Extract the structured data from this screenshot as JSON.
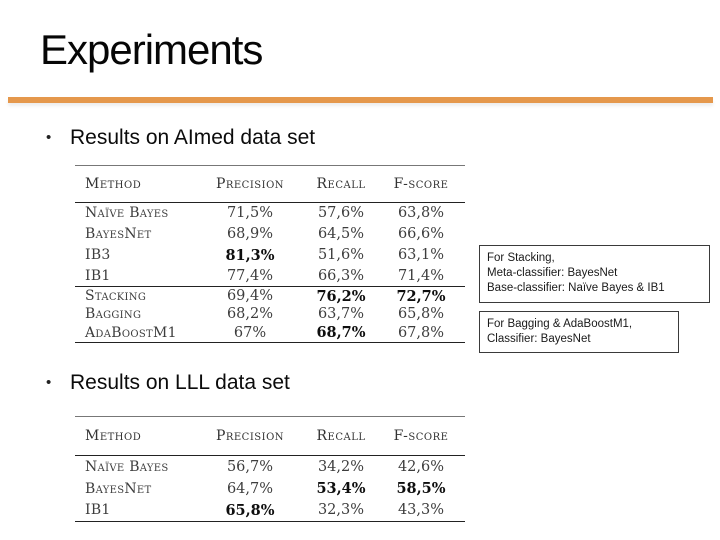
{
  "slide": {
    "title": "Experiments",
    "accent_color": "#E5984C",
    "bullets": {
      "aimed": "Results on AImed data set",
      "lll": "Results on LLL data set"
    }
  },
  "tables": {
    "aimed": {
      "headers": [
        "Method",
        "Precision",
        "Recall",
        "F-score"
      ],
      "groups": [
        [
          {
            "cells": [
              "Naïve Bayes",
              "71,5%",
              "57,6%",
              "63,8%"
            ],
            "bold": []
          },
          {
            "cells": [
              "BayesNet",
              "68,9%",
              "64,5%",
              "66,6%"
            ],
            "bold": []
          },
          {
            "cells": [
              "IB3",
              "81,3%",
              "51,6%",
              "63,1%"
            ],
            "bold": [
              1
            ]
          },
          {
            "cells": [
              "IB1",
              "77,4%",
              "66,3%",
              "71,4%"
            ],
            "bold": []
          }
        ],
        [
          {
            "cells": [
              "Stacking",
              "69,4%",
              "76,2%",
              "72,7%"
            ],
            "bold": [
              2,
              3
            ]
          },
          {
            "cells": [
              "Bagging",
              "68,2%",
              "63,7%",
              "65,8%"
            ],
            "bold": []
          },
          {
            "cells": [
              "AdaBoostM1",
              "67%",
              "68,7%",
              "67,8%"
            ],
            "bold": [
              2
            ]
          }
        ]
      ]
    },
    "lll": {
      "headers": [
        "Method",
        "Precision",
        "Recall",
        "F-score"
      ],
      "groups": [
        [
          {
            "cells": [
              "Naïve Bayes",
              "56,7%",
              "34,2%",
              "42,6%"
            ],
            "bold": []
          },
          {
            "cells": [
              "BayesNet",
              "64,7%",
              "53,4%",
              "58,5%"
            ],
            "bold": [
              2,
              3
            ]
          },
          {
            "cells": [
              "IB1",
              "65,8%",
              "32,3%",
              "43,3%"
            ],
            "bold": [
              1
            ]
          }
        ]
      ]
    }
  },
  "callouts": {
    "stacking": {
      "lines": [
        "For Stacking,",
        "Meta-classifier: BayesNet",
        "Base-classifier: Naïve Bayes & IB1"
      ]
    },
    "bagging": {
      "lines": [
        "For Bagging & AdaBoostM1,",
        "Classifier: BayesNet"
      ]
    }
  }
}
